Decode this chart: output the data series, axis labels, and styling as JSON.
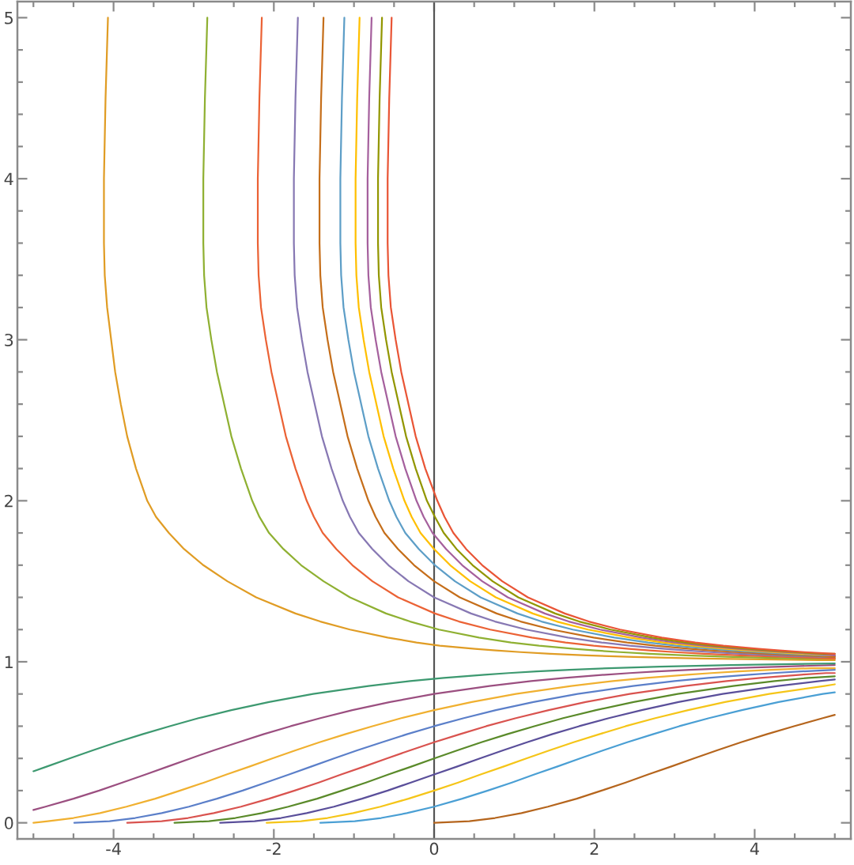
{
  "chart_data": {
    "type": "line",
    "xlim": [
      -5.2,
      5.2
    ],
    "ylim": [
      -0.1,
      5.1
    ],
    "xticks": [
      {
        "value": -5,
        "label": null
      },
      {
        "value": -4.5,
        "label": null
      },
      -4,
      {
        "value": -3.5,
        "label": null
      },
      {
        "value": -3,
        "label": null
      },
      {
        "value": -2.5,
        "label": null
      },
      -2,
      {
        "value": -1.5,
        "label": null
      },
      {
        "value": -1,
        "label": null
      },
      {
        "value": -0.5,
        "label": null
      },
      0,
      {
        "value": 0.5,
        "label": null
      },
      {
        "value": 1,
        "label": null
      },
      {
        "value": 1.5,
        "label": null
      },
      2,
      {
        "value": 2.5,
        "label": null
      },
      {
        "value": 3,
        "label": null
      },
      {
        "value": 3.5,
        "label": null
      },
      4,
      {
        "value": 4.5,
        "label": null
      },
      {
        "value": 5,
        "label": null
      }
    ],
    "yticks": [
      0,
      {
        "value": 0.2,
        "label": null
      },
      {
        "value": 0.4,
        "label": null
      },
      {
        "value": 0.6,
        "label": null
      },
      {
        "value": 0.8,
        "label": null
      },
      1,
      {
        "value": 1.2,
        "label": null
      },
      {
        "value": 1.4,
        "label": null
      },
      {
        "value": 1.6,
        "label": null
      },
      {
        "value": 1.8,
        "label": null
      },
      2,
      {
        "value": 2.2,
        "label": null
      },
      {
        "value": 2.4,
        "label": null
      },
      {
        "value": 2.6,
        "label": null
      },
      {
        "value": 2.8,
        "label": null
      },
      3,
      {
        "value": 3.2,
        "label": null
      },
      {
        "value": 3.4,
        "label": null
      },
      {
        "value": 3.6,
        "label": null
      },
      {
        "value": 3.8,
        "label": null
      },
      4,
      {
        "value": 4.2,
        "label": null
      },
      {
        "value": 4.4,
        "label": null
      },
      {
        "value": 4.6,
        "label": null
      },
      {
        "value": 4.8,
        "label": null
      },
      5
    ],
    "ref_lines": [
      {
        "axis": "x",
        "value": 0,
        "color": "#555555"
      }
    ],
    "series": [
      {
        "color": "#b5651d",
        "x": [
          0,
          0.44,
          0.76,
          1.09,
          1.42,
          1.78,
          2.09,
          2.39,
          2.67,
          2.96,
          3.24,
          3.53,
          3.83,
          4.15,
          4.49,
          4.85,
          5
        ],
        "values": [
          0,
          0.01,
          0.03,
          0.06,
          0.1,
          0.15,
          0.2,
          0.25,
          0.3,
          0.35,
          0.4,
          0.45,
          0.5,
          0.55,
          0.6,
          0.65,
          0.67
        ]
      },
      {
        "color": "#4a9fd4",
        "x": [
          -1.42,
          -0.99,
          -0.66,
          -0.34,
          0,
          0.35,
          0.67,
          0.97,
          1.25,
          1.54,
          1.82,
          2.11,
          2.41,
          2.73,
          3.06,
          3.43,
          3.84,
          4.3,
          4.85,
          5
        ],
        "values": [
          0,
          0.01,
          0.03,
          0.06,
          0.1,
          0.15,
          0.2,
          0.25,
          0.3,
          0.35,
          0.4,
          0.45,
          0.5,
          0.55,
          0.6,
          0.65,
          0.7,
          0.75,
          0.8,
          0.81
        ]
      },
      {
        "color": "#f5c518",
        "x": [
          -2.09,
          -1.66,
          -1.33,
          -1.01,
          -0.67,
          -0.32,
          0,
          0.3,
          0.58,
          0.87,
          1.15,
          1.44,
          1.74,
          2.06,
          2.39,
          2.76,
          3.17,
          3.63,
          4.18,
          4.87,
          5
        ],
        "values": [
          0,
          0.01,
          0.03,
          0.06,
          0.1,
          0.15,
          0.2,
          0.25,
          0.3,
          0.35,
          0.4,
          0.45,
          0.5,
          0.55,
          0.6,
          0.65,
          0.7,
          0.75,
          0.8,
          0.85,
          0.86
        ]
      },
      {
        "color": "#5a4f9a",
        "x": [
          -2.67,
          -2.24,
          -1.91,
          -1.59,
          -1.25,
          -0.9,
          -0.58,
          -0.29,
          0,
          0.29,
          0.57,
          0.86,
          1.16,
          1.47,
          1.81,
          2.18,
          2.59,
          3.05,
          3.6,
          4.29,
          4.81,
          5
        ],
        "values": [
          0,
          0.01,
          0.03,
          0.06,
          0.1,
          0.15,
          0.2,
          0.25,
          0.3,
          0.35,
          0.4,
          0.45,
          0.5,
          0.55,
          0.6,
          0.65,
          0.7,
          0.75,
          0.8,
          0.85,
          0.88,
          0.89
        ]
      },
      {
        "color": "#5a8a2a",
        "x": [
          -3.24,
          -2.81,
          -2.48,
          -2.15,
          -1.82,
          -1.46,
          -1.15,
          -0.85,
          -0.57,
          -0.28,
          0,
          0.29,
          0.59,
          0.91,
          1.25,
          1.61,
          2.02,
          2.49,
          3.04,
          3.73,
          4.25,
          4.67,
          5
        ],
        "values": [
          0,
          0.01,
          0.03,
          0.06,
          0.1,
          0.15,
          0.2,
          0.25,
          0.3,
          0.35,
          0.4,
          0.45,
          0.5,
          0.55,
          0.6,
          0.65,
          0.7,
          0.75,
          0.8,
          0.85,
          0.88,
          0.9,
          0.91
        ]
      },
      {
        "color": "#d9534f",
        "x": [
          -3.83,
          -3.4,
          -3.07,
          -2.75,
          -2.41,
          -2.06,
          -1.74,
          -1.44,
          -1.16,
          -0.87,
          -0.59,
          -0.3,
          0,
          0.32,
          0.65,
          1.02,
          1.43,
          1.89,
          2.44,
          3.13,
          3.65,
          4.07,
          4.58,
          4.89,
          5
        ],
        "values": [
          0,
          0.01,
          0.03,
          0.06,
          0.1,
          0.15,
          0.2,
          0.25,
          0.3,
          0.35,
          0.4,
          0.45,
          0.5,
          0.55,
          0.6,
          0.65,
          0.7,
          0.75,
          0.8,
          0.85,
          0.88,
          0.9,
          0.92,
          0.93,
          0.93
        ]
      },
      {
        "color": "#5b7fc9",
        "x": [
          -4.49,
          -4.05,
          -3.73,
          -3.4,
          -3.06,
          -2.71,
          -2.39,
          -2.1,
          -1.81,
          -1.53,
          -1.25,
          -0.96,
          -0.65,
          -0.34,
          0,
          0.37,
          0.77,
          1.24,
          1.79,
          2.48,
          3,
          3.42,
          3.93,
          4.23,
          4.58,
          5
        ],
        "values": [
          0,
          0.01,
          0.03,
          0.06,
          0.1,
          0.15,
          0.2,
          0.25,
          0.3,
          0.35,
          0.4,
          0.45,
          0.5,
          0.55,
          0.6,
          0.65,
          0.7,
          0.75,
          0.8,
          0.85,
          0.88,
          0.9,
          0.92,
          0.93,
          0.94,
          0.95
        ]
      },
      {
        "color": "#f0b030",
        "x": [
          -5,
          -4.82,
          -4.5,
          -4.17,
          -3.84,
          -3.48,
          -3.17,
          -2.87,
          -2.59,
          -2.3,
          -2.02,
          -1.73,
          -1.43,
          -1.11,
          -0.77,
          -0.41,
          0,
          0.47,
          1.02,
          1.71,
          2.23,
          2.65,
          3.16,
          3.46,
          3.8,
          4.21,
          4.71,
          5
        ],
        "values": [
          0,
          0.01,
          0.03,
          0.06,
          0.1,
          0.15,
          0.2,
          0.25,
          0.3,
          0.35,
          0.4,
          0.45,
          0.5,
          0.55,
          0.6,
          0.65,
          0.7,
          0.75,
          0.8,
          0.85,
          0.88,
          0.9,
          0.92,
          0.93,
          0.94,
          0.95,
          0.96,
          0.96
        ]
      },
      {
        "color": "#9b4f80",
        "x": [
          -5,
          -4.85,
          -4.5,
          -4.18,
          -3.89,
          -3.6,
          -3.32,
          -3.04,
          -2.75,
          -2.44,
          -2.13,
          -1.79,
          -1.42,
          -1.02,
          -0.55,
          0,
          0.69,
          1.21,
          1.63,
          2.14,
          2.44,
          2.79,
          3.2,
          3.69,
          4.33,
          5
        ],
        "values": [
          0.08,
          0.1,
          0.15,
          0.2,
          0.25,
          0.3,
          0.35,
          0.4,
          0.45,
          0.5,
          0.55,
          0.6,
          0.65,
          0.7,
          0.75,
          0.8,
          0.85,
          0.88,
          0.9,
          0.92,
          0.93,
          0.94,
          0.95,
          0.96,
          0.97,
          0.98
        ]
      },
      {
        "color": "#3d9970",
        "x": [
          -5,
          -4.83,
          -4.55,
          -4.26,
          -3.96,
          -3.64,
          -3.3,
          -2.94,
          -2.53,
          -2.06,
          -1.51,
          -0.82,
          -0.3,
          0.12,
          0.63,
          0.93,
          1.28,
          1.69,
          2.18,
          2.82,
          3.71,
          5
        ],
        "values": [
          0.32,
          0.35,
          0.4,
          0.45,
          0.5,
          0.55,
          0.6,
          0.65,
          0.7,
          0.75,
          0.8,
          0.85,
          0.88,
          0.9,
          0.92,
          0.93,
          0.94,
          0.95,
          0.96,
          0.97,
          0.98,
          0.99
        ]
      },
      {
        "color": "#e09c24",
        "x": [
          -4.07,
          -4.1,
          -4.12,
          -4.12,
          -4.11,
          -4.08,
          -4.03,
          -3.98,
          -3.91,
          -3.83,
          -3.72,
          -3.58,
          -3.47,
          -3.31,
          -3.12,
          -2.88,
          -2.58,
          -2.22,
          -1.73,
          -1.42,
          -1.05,
          -0.58,
          -0.22,
          0.07,
          0.51,
          0.77,
          1.08,
          1.45,
          1.9,
          2.49,
          3.33,
          4.79,
          5
        ],
        "values": [
          5,
          4.5,
          4,
          3.6,
          3.4,
          3.2,
          3,
          2.8,
          2.6,
          2.4,
          2.2,
          2,
          1.9,
          1.8,
          1.7,
          1.6,
          1.5,
          1.4,
          1.3,
          1.25,
          1.2,
          1.15,
          1.12,
          1.1,
          1.08,
          1.07,
          1.06,
          1.05,
          1.04,
          1.03,
          1.02,
          1.01,
          1.01
        ]
      },
      {
        "color": "#8fb032",
        "x": [
          -2.83,
          -2.86,
          -2.88,
          -2.88,
          -2.87,
          -2.84,
          -2.78,
          -2.71,
          -2.62,
          -2.53,
          -2.41,
          -2.27,
          -2.18,
          -2.06,
          -1.88,
          -1.66,
          -1.38,
          -1.05,
          -0.6,
          -0.3,
          0.06,
          0.56,
          0.96,
          1.31,
          1.75,
          2.01,
          2.32,
          2.69,
          3.14,
          3.73,
          4.57,
          5
        ],
        "values": [
          5,
          4.5,
          4,
          3.6,
          3.4,
          3.2,
          3,
          2.8,
          2.6,
          2.4,
          2.2,
          2,
          1.9,
          1.8,
          1.7,
          1.6,
          1.5,
          1.4,
          1.3,
          1.25,
          1.2,
          1.15,
          1.12,
          1.1,
          1.08,
          1.07,
          1.06,
          1.05,
          1.04,
          1.03,
          1.02,
          1.02
        ]
      },
      {
        "color": "#eb6235",
        "x": [
          -2.15,
          -2.18,
          -2.2,
          -2.2,
          -2.19,
          -2.16,
          -2.1,
          -2.03,
          -1.94,
          -1.85,
          -1.73,
          -1.59,
          -1.5,
          -1.39,
          -1.22,
          -1.02,
          -0.77,
          -0.45,
          0.01,
          0.31,
          0.7,
          1.22,
          1.64,
          1.99,
          2.43,
          2.69,
          3,
          3.37,
          3.82,
          4.41,
          5
        ],
        "values": [
          5,
          4.5,
          4,
          3.6,
          3.4,
          3.2,
          3,
          2.8,
          2.6,
          2.4,
          2.2,
          2,
          1.9,
          1.8,
          1.7,
          1.6,
          1.5,
          1.4,
          1.3,
          1.25,
          1.2,
          1.15,
          1.12,
          1.1,
          1.08,
          1.07,
          1.06,
          1.05,
          1.04,
          1.03,
          1.02
        ]
      },
      {
        "color": "#8778b3",
        "x": [
          -1.7,
          -1.73,
          -1.75,
          -1.75,
          -1.74,
          -1.71,
          -1.65,
          -1.58,
          -1.49,
          -1.4,
          -1.28,
          -1.14,
          -1.05,
          -0.94,
          -0.77,
          -0.57,
          -0.32,
          0,
          0.46,
          0.76,
          1.15,
          1.67,
          2.09,
          2.44,
          2.88,
          3.14,
          3.45,
          3.82,
          4.27,
          4.86,
          5
        ],
        "values": [
          5,
          4.5,
          4,
          3.6,
          3.4,
          3.2,
          3,
          2.8,
          2.6,
          2.4,
          2.2,
          2,
          1.9,
          1.8,
          1.7,
          1.6,
          1.5,
          1.4,
          1.3,
          1.25,
          1.2,
          1.15,
          1.12,
          1.1,
          1.08,
          1.07,
          1.06,
          1.05,
          1.04,
          1.03,
          1.03
        ]
      },
      {
        "color": "#c56e1a",
        "x": [
          -1.38,
          -1.41,
          -1.43,
          -1.43,
          -1.42,
          -1.39,
          -1.33,
          -1.26,
          -1.17,
          -1.08,
          -0.96,
          -0.82,
          -0.73,
          -0.62,
          -0.45,
          -0.25,
          0,
          0.32,
          0.78,
          1.08,
          1.47,
          1.99,
          2.41,
          2.76,
          3.2,
          3.46,
          3.77,
          4.14,
          4.59,
          5
        ],
        "values": [
          5,
          4.5,
          4,
          3.6,
          3.4,
          3.2,
          3,
          2.8,
          2.6,
          2.4,
          2.2,
          2,
          1.9,
          1.8,
          1.7,
          1.6,
          1.5,
          1.4,
          1.3,
          1.25,
          1.2,
          1.15,
          1.12,
          1.1,
          1.08,
          1.07,
          1.06,
          1.05,
          1.04,
          1.03
        ]
      },
      {
        "color": "#5d9ec7",
        "x": [
          -1.12,
          -1.15,
          -1.17,
          -1.17,
          -1.16,
          -1.13,
          -1.07,
          -1,
          -0.91,
          -0.82,
          -0.7,
          -0.56,
          -0.47,
          -0.36,
          -0.19,
          0.01,
          0.26,
          0.58,
          1.04,
          1.34,
          1.73,
          2.25,
          2.67,
          3.02,
          3.46,
          3.72,
          4.03,
          4.4,
          4.85,
          5
        ],
        "values": [
          5,
          4.5,
          4,
          3.6,
          3.4,
          3.2,
          3,
          2.8,
          2.6,
          2.4,
          2.2,
          2,
          1.9,
          1.8,
          1.7,
          1.6,
          1.5,
          1.4,
          1.3,
          1.25,
          1.2,
          1.15,
          1.12,
          1.1,
          1.08,
          1.07,
          1.06,
          1.05,
          1.04,
          1.04
        ]
      },
      {
        "color": "#ffbf00",
        "x": [
          -0.93,
          -0.96,
          -0.98,
          -0.98,
          -0.97,
          -0.94,
          -0.88,
          -0.81,
          -0.72,
          -0.63,
          -0.51,
          -0.37,
          -0.28,
          -0.17,
          0,
          0.2,
          0.45,
          0.77,
          1.23,
          1.53,
          1.92,
          2.44,
          2.86,
          3.21,
          3.65,
          3.91,
          4.22,
          4.59,
          5
        ],
        "values": [
          5,
          4.5,
          4,
          3.6,
          3.4,
          3.2,
          3,
          2.8,
          2.6,
          2.4,
          2.2,
          2,
          1.9,
          1.8,
          1.7,
          1.6,
          1.5,
          1.4,
          1.3,
          1.25,
          1.2,
          1.15,
          1.12,
          1.1,
          1.08,
          1.07,
          1.06,
          1.05,
          1.04
        ]
      },
      {
        "color": "#a5609d",
        "x": [
          -0.78,
          -0.81,
          -0.83,
          -0.83,
          -0.82,
          -0.79,
          -0.73,
          -0.66,
          -0.57,
          -0.48,
          -0.36,
          -0.22,
          -0.13,
          -0.02,
          0.15,
          0.35,
          0.6,
          0.92,
          1.38,
          1.68,
          2.07,
          2.59,
          3.01,
          3.36,
          3.8,
          4.06,
          4.37,
          4.74,
          5
        ],
        "values": [
          5,
          4.5,
          4,
          3.6,
          3.4,
          3.2,
          3,
          2.8,
          2.6,
          2.4,
          2.2,
          2,
          1.9,
          1.8,
          1.7,
          1.6,
          1.5,
          1.4,
          1.3,
          1.25,
          1.2,
          1.15,
          1.12,
          1.1,
          1.08,
          1.07,
          1.06,
          1.05,
          1.04
        ]
      },
      {
        "color": "#929600",
        "x": [
          -0.65,
          -0.68,
          -0.7,
          -0.7,
          -0.69,
          -0.66,
          -0.6,
          -0.53,
          -0.44,
          -0.35,
          -0.23,
          -0.09,
          0.01,
          0.12,
          0.28,
          0.48,
          0.73,
          1.05,
          1.51,
          1.81,
          2.2,
          2.72,
          3.14,
          3.49,
          3.93,
          4.19,
          4.5,
          4.87,
          5
        ],
        "values": [
          5,
          4.5,
          4,
          3.6,
          3.4,
          3.2,
          3,
          2.8,
          2.6,
          2.4,
          2.2,
          2,
          1.9,
          1.8,
          1.7,
          1.6,
          1.5,
          1.4,
          1.3,
          1.25,
          1.2,
          1.15,
          1.12,
          1.1,
          1.08,
          1.07,
          1.06,
          1.05,
          1.05
        ]
      },
      {
        "color": "#e95536",
        "x": [
          -0.53,
          -0.56,
          -0.58,
          -0.58,
          -0.57,
          -0.54,
          -0.48,
          -0.41,
          -0.32,
          -0.23,
          -0.11,
          0.04,
          0.13,
          0.24,
          0.4,
          0.6,
          0.85,
          1.17,
          1.63,
          1.93,
          2.32,
          2.84,
          3.26,
          3.61,
          4.05,
          4.31,
          4.62,
          5
        ],
        "values": [
          5,
          4.5,
          4,
          3.6,
          3.4,
          3.2,
          3,
          2.8,
          2.6,
          2.4,
          2.2,
          2,
          1.9,
          1.8,
          1.7,
          1.6,
          1.5,
          1.4,
          1.3,
          1.25,
          1.2,
          1.15,
          1.12,
          1.1,
          1.08,
          1.07,
          1.06,
          1.05
        ]
      }
    ]
  }
}
